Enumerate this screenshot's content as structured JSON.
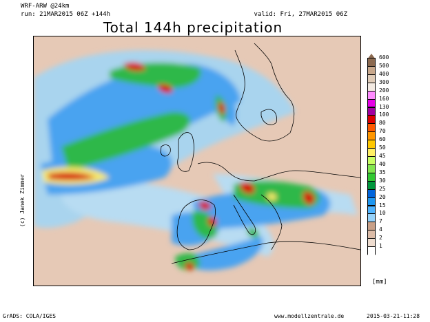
{
  "header": {
    "model": "WRF-ARW @24km",
    "run": "run: 21MAR2015 06Z +144h",
    "valid": "valid: Fri, 27MAR2015 06Z",
    "title": "Total 144h precipitation"
  },
  "credits": {
    "author": "(c) Janek Zimmer",
    "grads": "GrADS: COLA/IGES",
    "website": "www.modellzentrale.de",
    "timestamp": "2015-03-21-11:28"
  },
  "legend": {
    "unit": "[mm]",
    "levels": [
      {
        "label": "600",
        "color": "#8c6a50"
      },
      {
        "label": "500",
        "color": "#c8a88c"
      },
      {
        "label": "400",
        "color": "#e0ccb8"
      },
      {
        "label": "300",
        "color": "#f3eae2"
      },
      {
        "label": "200",
        "color": "#ff8cff"
      },
      {
        "label": "160",
        "color": "#e600e6"
      },
      {
        "label": "130",
        "color": "#a000a0"
      },
      {
        "label": "100",
        "color": "#dc0000"
      },
      {
        "label": "80",
        "color": "#ff5a00"
      },
      {
        "label": "70",
        "color": "#ff9600"
      },
      {
        "label": "60",
        "color": "#ffc800"
      },
      {
        "label": "50",
        "color": "#fff064"
      },
      {
        "label": "45",
        "color": "#c8ff64"
      },
      {
        "label": "40",
        "color": "#82e650"
      },
      {
        "label": "35",
        "color": "#32c832"
      },
      {
        "label": "30",
        "color": "#00963c"
      },
      {
        "label": "25",
        "color": "#0064dc"
      },
      {
        "label": "20",
        "color": "#1e96f0"
      },
      {
        "label": "15",
        "color": "#50b4ff"
      },
      {
        "label": "10",
        "color": "#96d2fa"
      },
      {
        "label": "7",
        "color": "#c8a088"
      },
      {
        "label": "4",
        "color": "#dcbca8"
      },
      {
        "label": "2",
        "color": "#eedccf"
      },
      {
        "label": "1",
        "color": "#ffffff"
      }
    ]
  },
  "map_colors": {
    "land_dry": "#d9b8a4",
    "light_rain": "#a9d4ee",
    "moderate": "#4aa3f0",
    "heavy_green": "#2db84a",
    "yellow": "#f5e96a",
    "red": "#d60000",
    "coast": "#000000"
  }
}
